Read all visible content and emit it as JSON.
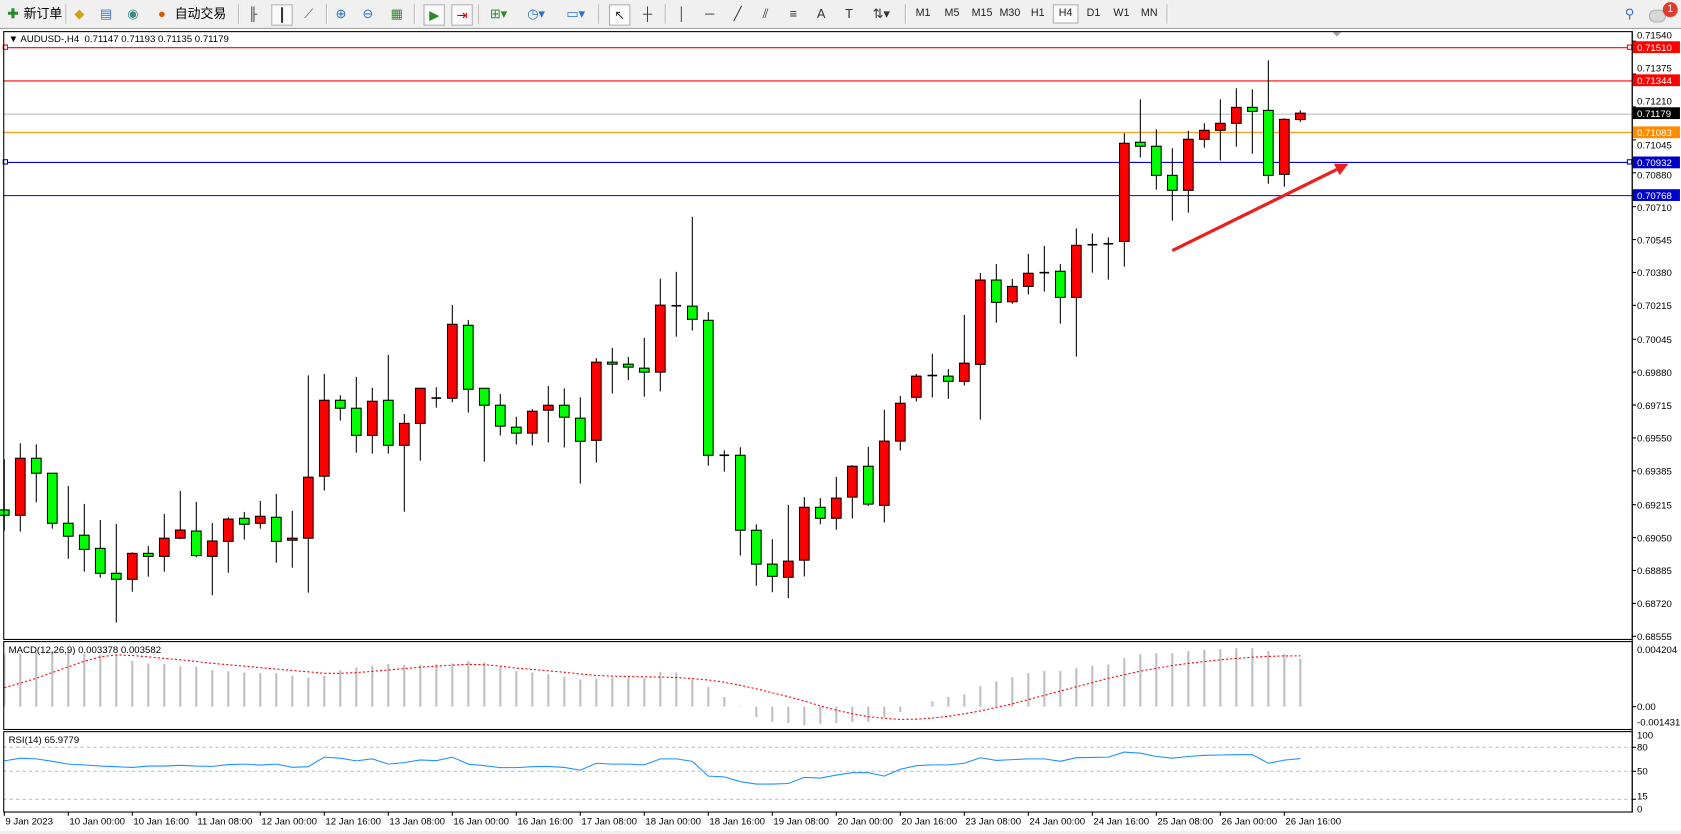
{
  "toolbar": {
    "new_order_label": "新订单",
    "auto_trade_label": "自动交易",
    "timeframes": [
      "M1",
      "M5",
      "M15",
      "M30",
      "H1",
      "H4",
      "D1",
      "W1",
      "MN"
    ],
    "active_timeframe": "H4",
    "notification_count": "1",
    "icons": [
      "new-order-icon",
      "metaeditor-icon",
      "market-watch-icon",
      "signal-icon",
      "auto-trading-icon",
      "bar-chart-icon",
      "candlestick-icon",
      "line-chart-icon",
      "zoom-in-icon",
      "zoom-out-icon",
      "tile-windows-icon",
      "auto-scroll-icon",
      "chart-shift-icon",
      "indicators-icon",
      "periods-icon",
      "templates-icon",
      "cursor-icon",
      "crosshair-icon",
      "vertical-line-icon",
      "horizontal-line-icon",
      "trendline-icon",
      "equidistant-channel-icon",
      "fibonacci-icon",
      "text-icon",
      "text-label-icon",
      "arrows-icon",
      "search-icon",
      "notification-icon"
    ]
  },
  "chart": {
    "header": "AUDUSD-,H4  0.71147 0.71193 0.71135 0.71179",
    "colors": {
      "bull": "#ff0000",
      "bear": "#00ff00",
      "bid_line": "#c0c0c0",
      "resistance": "#ff0000",
      "ask_line": "#ff8c00",
      "support": "#0000cd",
      "arrow": "#e82020"
    }
  },
  "chart_data": [
    {
      "type": "candlestick",
      "symbol": "AUDUSD-",
      "timeframe": "H4",
      "ylim": [
        0.6854,
        0.71585
      ],
      "price_ticks": [
        "0.71540",
        "0.71375",
        "0.71210",
        "0.71045",
        "0.70880",
        "0.70710",
        "0.70545",
        "0.70380",
        "0.70215",
        "0.70045",
        "0.69880",
        "0.69715",
        "0.69550",
        "0.69385",
        "0.69215",
        "0.69050",
        "0.68885",
        "0.68720",
        "0.68555"
      ],
      "x_tick_labels": [
        "9 Jan 2023",
        "10 Jan 00:00",
        "10 Jan 16:00",
        "11 Jan 08:00",
        "12 Jan 00:00",
        "12 Jan 16:00",
        "13 Jan 08:00",
        "16 Jan 00:00",
        "16 Jan 16:00",
        "17 Jan 08:00",
        "18 Jan 00:00",
        "18 Jan 16:00",
        "19 Jan 08:00",
        "20 Jan 00:00",
        "20 Jan 16:00",
        "23 Jan 08:00",
        "24 Jan 00:00",
        "24 Jan 16:00",
        "25 Jan 08:00",
        "26 Jan 00:00",
        "26 Jan 16:00"
      ],
      "x_tick_every_bars": 4,
      "ohlc": [
        [
          0.69189,
          0.69443,
          0.69085,
          0.69162
        ],
        [
          0.69162,
          0.69523,
          0.6908,
          0.69448
        ],
        [
          0.69448,
          0.69518,
          0.69227,
          0.69373
        ],
        [
          0.69373,
          0.69373,
          0.69095,
          0.69122
        ],
        [
          0.69122,
          0.69309,
          0.68944,
          0.69057
        ],
        [
          0.69062,
          0.69219,
          0.68879,
          0.68991
        ],
        [
          0.68996,
          0.69138,
          0.68849,
          0.68871
        ],
        [
          0.68871,
          0.69118,
          0.68624,
          0.68841
        ],
        [
          0.68841,
          0.68976,
          0.68779,
          0.68971
        ],
        [
          0.68971,
          0.69008,
          0.68854,
          0.68956
        ],
        [
          0.68956,
          0.69169,
          0.68879,
          0.69047
        ],
        [
          0.69047,
          0.69284,
          0.69042,
          0.69088
        ],
        [
          0.69083,
          0.69229,
          0.68951,
          0.6896
        ],
        [
          0.68956,
          0.69123,
          0.68761,
          0.69033
        ],
        [
          0.69031,
          0.69152,
          0.68874,
          0.69143
        ],
        [
          0.69147,
          0.69179,
          0.6904,
          0.69117
        ],
        [
          0.69122,
          0.69234,
          0.69095,
          0.69157
        ],
        [
          0.69152,
          0.69269,
          0.68924,
          0.69031
        ],
        [
          0.69037,
          0.69184,
          0.68899,
          0.69047
        ],
        [
          0.69047,
          0.69864,
          0.68774,
          0.69353
        ],
        [
          0.69358,
          0.69871,
          0.69286,
          0.69739
        ],
        [
          0.69739,
          0.69764,
          0.69637,
          0.69699
        ],
        [
          0.69699,
          0.69856,
          0.69476,
          0.69563
        ],
        [
          0.69563,
          0.69801,
          0.69471,
          0.69734
        ],
        [
          0.69739,
          0.69966,
          0.69471,
          0.69513
        ],
        [
          0.69513,
          0.6967,
          0.6918,
          0.69623
        ],
        [
          0.69623,
          0.69799,
          0.69436,
          0.69799
        ],
        [
          0.69749,
          0.69804,
          0.69702,
          0.6975
        ],
        [
          0.69749,
          0.70217,
          0.69729,
          0.7012
        ],
        [
          0.70115,
          0.70142,
          0.69677,
          0.69794
        ],
        [
          0.69799,
          0.69799,
          0.69431,
          0.69714
        ],
        [
          0.69714,
          0.69771,
          0.69562,
          0.69609
        ],
        [
          0.69604,
          0.69656,
          0.69517,
          0.69574
        ],
        [
          0.69574,
          0.69694,
          0.69512,
          0.69684
        ],
        [
          0.69689,
          0.69811,
          0.69527,
          0.69714
        ],
        [
          0.69714,
          0.69799,
          0.69502,
          0.69654
        ],
        [
          0.69649,
          0.69754,
          0.69321,
          0.69533
        ],
        [
          0.69538,
          0.6995,
          0.69426,
          0.6993
        ],
        [
          0.6993,
          0.70002,
          0.69773,
          0.6992
        ],
        [
          0.6992,
          0.69956,
          0.69841,
          0.69905
        ],
        [
          0.699,
          0.70052,
          0.69757,
          0.6988
        ],
        [
          0.6988,
          0.70348,
          0.69783,
          0.70216
        ],
        [
          0.70212,
          0.70383,
          0.70058,
          0.70213
        ],
        [
          0.70211,
          0.70659,
          0.70089,
          0.70145
        ],
        [
          0.7014,
          0.70181,
          0.69411,
          0.69463
        ],
        [
          0.69463,
          0.69488,
          0.69381,
          0.69462
        ],
        [
          0.69463,
          0.69503,
          0.6896,
          0.69087
        ],
        [
          0.69087,
          0.69117,
          0.68809,
          0.68917
        ],
        [
          0.68917,
          0.69042,
          0.68776,
          0.68856
        ],
        [
          0.68851,
          0.69214,
          0.68746,
          0.68932
        ],
        [
          0.68937,
          0.69253,
          0.68855,
          0.69202
        ],
        [
          0.69202,
          0.69248,
          0.69117,
          0.69147
        ],
        [
          0.69147,
          0.69355,
          0.6909,
          0.69248
        ],
        [
          0.69253,
          0.69413,
          0.69146,
          0.69408
        ],
        [
          0.69408,
          0.69505,
          0.69209,
          0.69218
        ],
        [
          0.69212,
          0.69691,
          0.69126,
          0.69534
        ],
        [
          0.69534,
          0.69761,
          0.69487,
          0.69724
        ],
        [
          0.69754,
          0.69871,
          0.69733,
          0.6986
        ],
        [
          0.69863,
          0.69972,
          0.69753,
          0.69862
        ],
        [
          0.6986,
          0.69896,
          0.69746,
          0.69834
        ],
        [
          0.69834,
          0.70167,
          0.69813,
          0.69925
        ],
        [
          0.69919,
          0.70377,
          0.69642,
          0.70342
        ],
        [
          0.70342,
          0.70422,
          0.70128,
          0.7023
        ],
        [
          0.70233,
          0.70347,
          0.70223,
          0.7031
        ],
        [
          0.7031,
          0.70473,
          0.70269,
          0.70376
        ],
        [
          0.70379,
          0.70513,
          0.70284,
          0.70378
        ],
        [
          0.70386,
          0.70422,
          0.70123,
          0.70255
        ],
        [
          0.70255,
          0.70601,
          0.69958,
          0.70516
        ],
        [
          0.70519,
          0.70576,
          0.70379,
          0.70518
        ],
        [
          0.70516,
          0.70556,
          0.70344,
          0.70524
        ],
        [
          0.70536,
          0.71078,
          0.70409,
          0.71028
        ],
        [
          0.71033,
          0.71248,
          0.70957,
          0.71013
        ],
        [
          0.71013,
          0.71098,
          0.70795,
          0.70867
        ],
        [
          0.70867,
          0.71003,
          0.7064,
          0.70792
        ],
        [
          0.70792,
          0.7109,
          0.7068,
          0.71048
        ],
        [
          0.71048,
          0.71128,
          0.71006,
          0.71093
        ],
        [
          0.71093,
          0.71248,
          0.70941,
          0.71128
        ],
        [
          0.71128,
          0.71304,
          0.71011,
          0.71208
        ],
        [
          0.71208,
          0.71299,
          0.70976,
          0.71188
        ],
        [
          0.71193,
          0.71444,
          0.70825,
          0.70867
        ],
        [
          0.70872,
          0.71153,
          0.7081,
          0.71148
        ],
        [
          0.71147,
          0.71193,
          0.71135,
          0.71179
        ]
      ],
      "horizontal_lines": [
        {
          "price": "0.71510",
          "color": "#ff0000",
          "label_bg": "#ff0000",
          "label_fg": "#ffffff",
          "handle": true
        },
        {
          "price": "0.71344",
          "color": "#ff0000",
          "label_bg": "#ff0000",
          "label_fg": "#ffffff",
          "handle": false
        },
        {
          "price": "0.71179",
          "color": "#c0c0c0",
          "label_bg": "#000000",
          "label_fg": "#ffffff",
          "handle": false
        },
        {
          "price": "0.71083",
          "color": "#ff8c00",
          "label_bg": "#ff8c00",
          "label_fg": "#ffffff",
          "handle": false
        },
        {
          "price": "0.70932",
          "color": "#0000cd",
          "label_bg": "#0000cd",
          "label_fg": "#ffffff",
          "handle": true
        },
        {
          "price": "0.70768",
          "color": "#0000cd",
          "label_bg": "#0000cd",
          "label_fg": "#ffffff",
          "handle": false
        }
      ],
      "annotation_arrow": {
        "from_bar": 73,
        "from_price": 0.7049,
        "to_bar": 84,
        "to_price": 0.70925,
        "color": "#e82020"
      }
    },
    {
      "type": "macd",
      "title": "MACD(12,26,9) 0.003378 0.003582",
      "axis_labels": [
        "0.004204",
        "0.00",
        "-0.001431"
      ],
      "ylim": [
        -0.0015,
        0.0046
      ],
      "main": [
        0.0037,
        0.00375,
        0.00387,
        0.00393,
        0.00399,
        0.00375,
        0.00363,
        0.00363,
        0.00323,
        0.00304,
        0.003,
        0.00285,
        0.00281,
        0.00257,
        0.0025,
        0.0024,
        0.00238,
        0.00238,
        0.00217,
        0.00205,
        0.00217,
        0.00257,
        0.00276,
        0.00288,
        0.00299,
        0.00295,
        0.00295,
        0.00299,
        0.00304,
        0.00321,
        0.00311,
        0.00281,
        0.00252,
        0.0024,
        0.00229,
        0.0021,
        0.00191,
        0.00198,
        0.00203,
        0.00203,
        0.00203,
        0.00245,
        0.0024,
        0.00191,
        0.00139,
        0.00068,
        -3e-05,
        -0.00073,
        -0.00108,
        -0.00116,
        -0.00132,
        -0.0012,
        -0.00115,
        -0.00108,
        -0.00108,
        -0.00078,
        -0.00038,
        2e-05,
        0.00038,
        0.00068,
        0.00087,
        0.00144,
        0.00179,
        0.00208,
        0.00238,
        0.00252,
        0.00252,
        0.00271,
        0.00288,
        0.00297,
        0.00342,
        0.0037,
        0.00377,
        0.00377,
        0.00391,
        0.00399,
        0.00405,
        0.00412,
        0.00412,
        0.00391,
        0.0037,
        0.003378
      ],
      "signal": [
        0.00134,
        0.00165,
        0.002,
        0.0024,
        0.0028,
        0.0032,
        0.0035,
        0.00365,
        0.0036,
        0.0035,
        0.0034,
        0.0033,
        0.00318,
        0.00305,
        0.00295,
        0.00285,
        0.00275,
        0.00265,
        0.00255,
        0.00245,
        0.00235,
        0.00235,
        0.0024,
        0.00248,
        0.00258,
        0.00268,
        0.00278,
        0.00285,
        0.00292,
        0.00298,
        0.00295,
        0.00285,
        0.00272,
        0.00262,
        0.00252,
        0.00242,
        0.0023,
        0.0022,
        0.00215,
        0.00212,
        0.0021,
        0.00208,
        0.00205,
        0.00198,
        0.00188,
        0.00172,
        0.0015,
        0.00125,
        0.00098,
        0.0007,
        0.0004,
        5e-05,
        -0.00025,
        -0.0005,
        -0.0007,
        -0.00082,
        -0.0009,
        -0.00088,
        -0.0008,
        -0.00068,
        -0.0005,
        -0.0003,
        -5e-05,
        0.0002,
        0.0005,
        0.0008,
        0.0011,
        0.0014,
        0.0017,
        0.002,
        0.00225,
        0.0025,
        0.0027,
        0.0029,
        0.00305,
        0.00318,
        0.0033,
        0.0034,
        0.00348,
        0.00354,
        0.00357,
        0.003582
      ]
    },
    {
      "type": "line",
      "title": "RSI(14) 65.9779",
      "axis_labels": [
        "100",
        "80",
        "50",
        "15",
        "0"
      ],
      "levels": [
        80,
        50,
        15
      ],
      "ylim": [
        0,
        100
      ],
      "values": [
        63,
        66.3,
        65.6,
        62.5,
        59,
        58,
        56.6,
        55.7,
        54.8,
        56.6,
        56.6,
        57.5,
        56.6,
        56.2,
        58.4,
        59,
        57.8,
        59,
        55,
        55.7,
        67.7,
        66.3,
        63,
        65.6,
        59,
        60.8,
        64.2,
        63.3,
        67.7,
        59,
        57,
        54.5,
        54.5,
        55.7,
        56,
        54.8,
        51.5,
        60,
        59,
        59,
        58,
        65.6,
        65.6,
        62.5,
        44,
        43,
        37,
        34,
        34,
        34.7,
        42.3,
        41.5,
        45.3,
        48.3,
        48.3,
        44,
        52.6,
        57,
        58,
        58,
        60,
        66.9,
        63.6,
        64.6,
        65.5,
        65.5,
        62.5,
        67,
        67.3,
        67.7,
        74,
        72.7,
        68.5,
        66.3,
        68.5,
        70,
        70.4,
        70.8,
        70.8,
        60,
        64,
        65.9779
      ],
      "color": "#1e90ff"
    }
  ]
}
